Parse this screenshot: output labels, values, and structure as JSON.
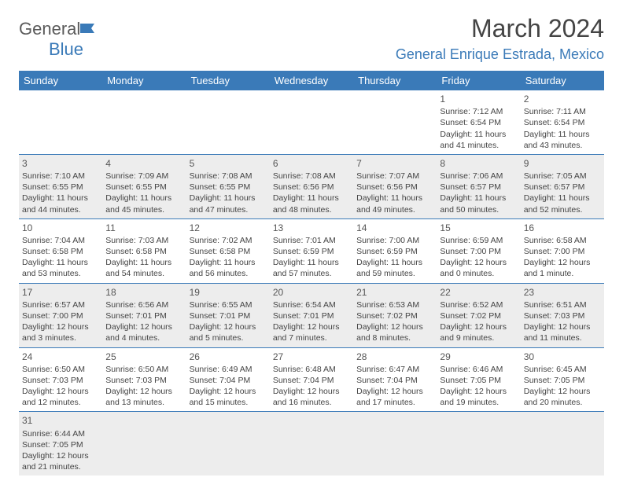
{
  "logo": {
    "text1": "General",
    "text2": "Blue"
  },
  "title": "March 2024",
  "location": "General Enrique Estrada, Mexico",
  "colors": {
    "accent": "#3a7ab8",
    "text": "#444",
    "altRow": "#ededed"
  },
  "headers": [
    "Sunday",
    "Monday",
    "Tuesday",
    "Wednesday",
    "Thursday",
    "Friday",
    "Saturday"
  ],
  "weeks": [
    [
      null,
      null,
      null,
      null,
      null,
      {
        "n": "1",
        "sr": "Sunrise: 7:12 AM",
        "ss": "Sunset: 6:54 PM",
        "d1": "Daylight: 11 hours",
        "d2": "and 41 minutes."
      },
      {
        "n": "2",
        "sr": "Sunrise: 7:11 AM",
        "ss": "Sunset: 6:54 PM",
        "d1": "Daylight: 11 hours",
        "d2": "and 43 minutes."
      }
    ],
    [
      {
        "n": "3",
        "sr": "Sunrise: 7:10 AM",
        "ss": "Sunset: 6:55 PM",
        "d1": "Daylight: 11 hours",
        "d2": "and 44 minutes."
      },
      {
        "n": "4",
        "sr": "Sunrise: 7:09 AM",
        "ss": "Sunset: 6:55 PM",
        "d1": "Daylight: 11 hours",
        "d2": "and 45 minutes."
      },
      {
        "n": "5",
        "sr": "Sunrise: 7:08 AM",
        "ss": "Sunset: 6:55 PM",
        "d1": "Daylight: 11 hours",
        "d2": "and 47 minutes."
      },
      {
        "n": "6",
        "sr": "Sunrise: 7:08 AM",
        "ss": "Sunset: 6:56 PM",
        "d1": "Daylight: 11 hours",
        "d2": "and 48 minutes."
      },
      {
        "n": "7",
        "sr": "Sunrise: 7:07 AM",
        "ss": "Sunset: 6:56 PM",
        "d1": "Daylight: 11 hours",
        "d2": "and 49 minutes."
      },
      {
        "n": "8",
        "sr": "Sunrise: 7:06 AM",
        "ss": "Sunset: 6:57 PM",
        "d1": "Daylight: 11 hours",
        "d2": "and 50 minutes."
      },
      {
        "n": "9",
        "sr": "Sunrise: 7:05 AM",
        "ss": "Sunset: 6:57 PM",
        "d1": "Daylight: 11 hours",
        "d2": "and 52 minutes."
      }
    ],
    [
      {
        "n": "10",
        "sr": "Sunrise: 7:04 AM",
        "ss": "Sunset: 6:58 PM",
        "d1": "Daylight: 11 hours",
        "d2": "and 53 minutes."
      },
      {
        "n": "11",
        "sr": "Sunrise: 7:03 AM",
        "ss": "Sunset: 6:58 PM",
        "d1": "Daylight: 11 hours",
        "d2": "and 54 minutes."
      },
      {
        "n": "12",
        "sr": "Sunrise: 7:02 AM",
        "ss": "Sunset: 6:58 PM",
        "d1": "Daylight: 11 hours",
        "d2": "and 56 minutes."
      },
      {
        "n": "13",
        "sr": "Sunrise: 7:01 AM",
        "ss": "Sunset: 6:59 PM",
        "d1": "Daylight: 11 hours",
        "d2": "and 57 minutes."
      },
      {
        "n": "14",
        "sr": "Sunrise: 7:00 AM",
        "ss": "Sunset: 6:59 PM",
        "d1": "Daylight: 11 hours",
        "d2": "and 59 minutes."
      },
      {
        "n": "15",
        "sr": "Sunrise: 6:59 AM",
        "ss": "Sunset: 7:00 PM",
        "d1": "Daylight: 12 hours",
        "d2": "and 0 minutes."
      },
      {
        "n": "16",
        "sr": "Sunrise: 6:58 AM",
        "ss": "Sunset: 7:00 PM",
        "d1": "Daylight: 12 hours",
        "d2": "and 1 minute."
      }
    ],
    [
      {
        "n": "17",
        "sr": "Sunrise: 6:57 AM",
        "ss": "Sunset: 7:00 PM",
        "d1": "Daylight: 12 hours",
        "d2": "and 3 minutes."
      },
      {
        "n": "18",
        "sr": "Sunrise: 6:56 AM",
        "ss": "Sunset: 7:01 PM",
        "d1": "Daylight: 12 hours",
        "d2": "and 4 minutes."
      },
      {
        "n": "19",
        "sr": "Sunrise: 6:55 AM",
        "ss": "Sunset: 7:01 PM",
        "d1": "Daylight: 12 hours",
        "d2": "and 5 minutes."
      },
      {
        "n": "20",
        "sr": "Sunrise: 6:54 AM",
        "ss": "Sunset: 7:01 PM",
        "d1": "Daylight: 12 hours",
        "d2": "and 7 minutes."
      },
      {
        "n": "21",
        "sr": "Sunrise: 6:53 AM",
        "ss": "Sunset: 7:02 PM",
        "d1": "Daylight: 12 hours",
        "d2": "and 8 minutes."
      },
      {
        "n": "22",
        "sr": "Sunrise: 6:52 AM",
        "ss": "Sunset: 7:02 PM",
        "d1": "Daylight: 12 hours",
        "d2": "and 9 minutes."
      },
      {
        "n": "23",
        "sr": "Sunrise: 6:51 AM",
        "ss": "Sunset: 7:03 PM",
        "d1": "Daylight: 12 hours",
        "d2": "and 11 minutes."
      }
    ],
    [
      {
        "n": "24",
        "sr": "Sunrise: 6:50 AM",
        "ss": "Sunset: 7:03 PM",
        "d1": "Daylight: 12 hours",
        "d2": "and 12 minutes."
      },
      {
        "n": "25",
        "sr": "Sunrise: 6:50 AM",
        "ss": "Sunset: 7:03 PM",
        "d1": "Daylight: 12 hours",
        "d2": "and 13 minutes."
      },
      {
        "n": "26",
        "sr": "Sunrise: 6:49 AM",
        "ss": "Sunset: 7:04 PM",
        "d1": "Daylight: 12 hours",
        "d2": "and 15 minutes."
      },
      {
        "n": "27",
        "sr": "Sunrise: 6:48 AM",
        "ss": "Sunset: 7:04 PM",
        "d1": "Daylight: 12 hours",
        "d2": "and 16 minutes."
      },
      {
        "n": "28",
        "sr": "Sunrise: 6:47 AM",
        "ss": "Sunset: 7:04 PM",
        "d1": "Daylight: 12 hours",
        "d2": "and 17 minutes."
      },
      {
        "n": "29",
        "sr": "Sunrise: 6:46 AM",
        "ss": "Sunset: 7:05 PM",
        "d1": "Daylight: 12 hours",
        "d2": "and 19 minutes."
      },
      {
        "n": "30",
        "sr": "Sunrise: 6:45 AM",
        "ss": "Sunset: 7:05 PM",
        "d1": "Daylight: 12 hours",
        "d2": "and 20 minutes."
      }
    ],
    [
      {
        "n": "31",
        "sr": "Sunrise: 6:44 AM",
        "ss": "Sunset: 7:05 PM",
        "d1": "Daylight: 12 hours",
        "d2": "and 21 minutes."
      },
      null,
      null,
      null,
      null,
      null,
      null
    ]
  ]
}
